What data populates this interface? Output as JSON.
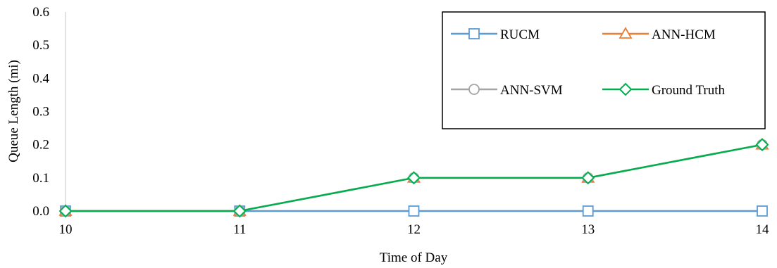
{
  "chart_data": {
    "type": "line",
    "xlabel": "Time of Day",
    "ylabel": "Queue Length (mi)",
    "x": [
      10,
      11,
      12,
      13,
      14
    ],
    "xticks": [
      "10",
      "11",
      "12",
      "13",
      "14"
    ],
    "ylim": [
      0,
      0.6
    ],
    "yticks": [
      "0.0",
      "0.1",
      "0.2",
      "0.3",
      "0.4",
      "0.5",
      "0.6"
    ],
    "grid": false,
    "legend_position": "top-right",
    "series": [
      {
        "name": "RUCM",
        "values": [
          0,
          0,
          0,
          0,
          0
        ],
        "color": "#5B9BD5",
        "marker": "square"
      },
      {
        "name": "ANN-HCM",
        "values": [
          0,
          0,
          0.1,
          0.1,
          0.2
        ],
        "color": "#ED7D31",
        "marker": "triangle"
      },
      {
        "name": "ANN-SVM",
        "values": [
          0,
          0,
          0.1,
          0.1,
          0.2
        ],
        "color": "#A5A5A5",
        "marker": "circle"
      },
      {
        "name": "Ground Truth",
        "values": [
          0,
          0,
          0.1,
          0.1,
          0.2
        ],
        "color": "#00B050",
        "marker": "diamond"
      }
    ]
  }
}
